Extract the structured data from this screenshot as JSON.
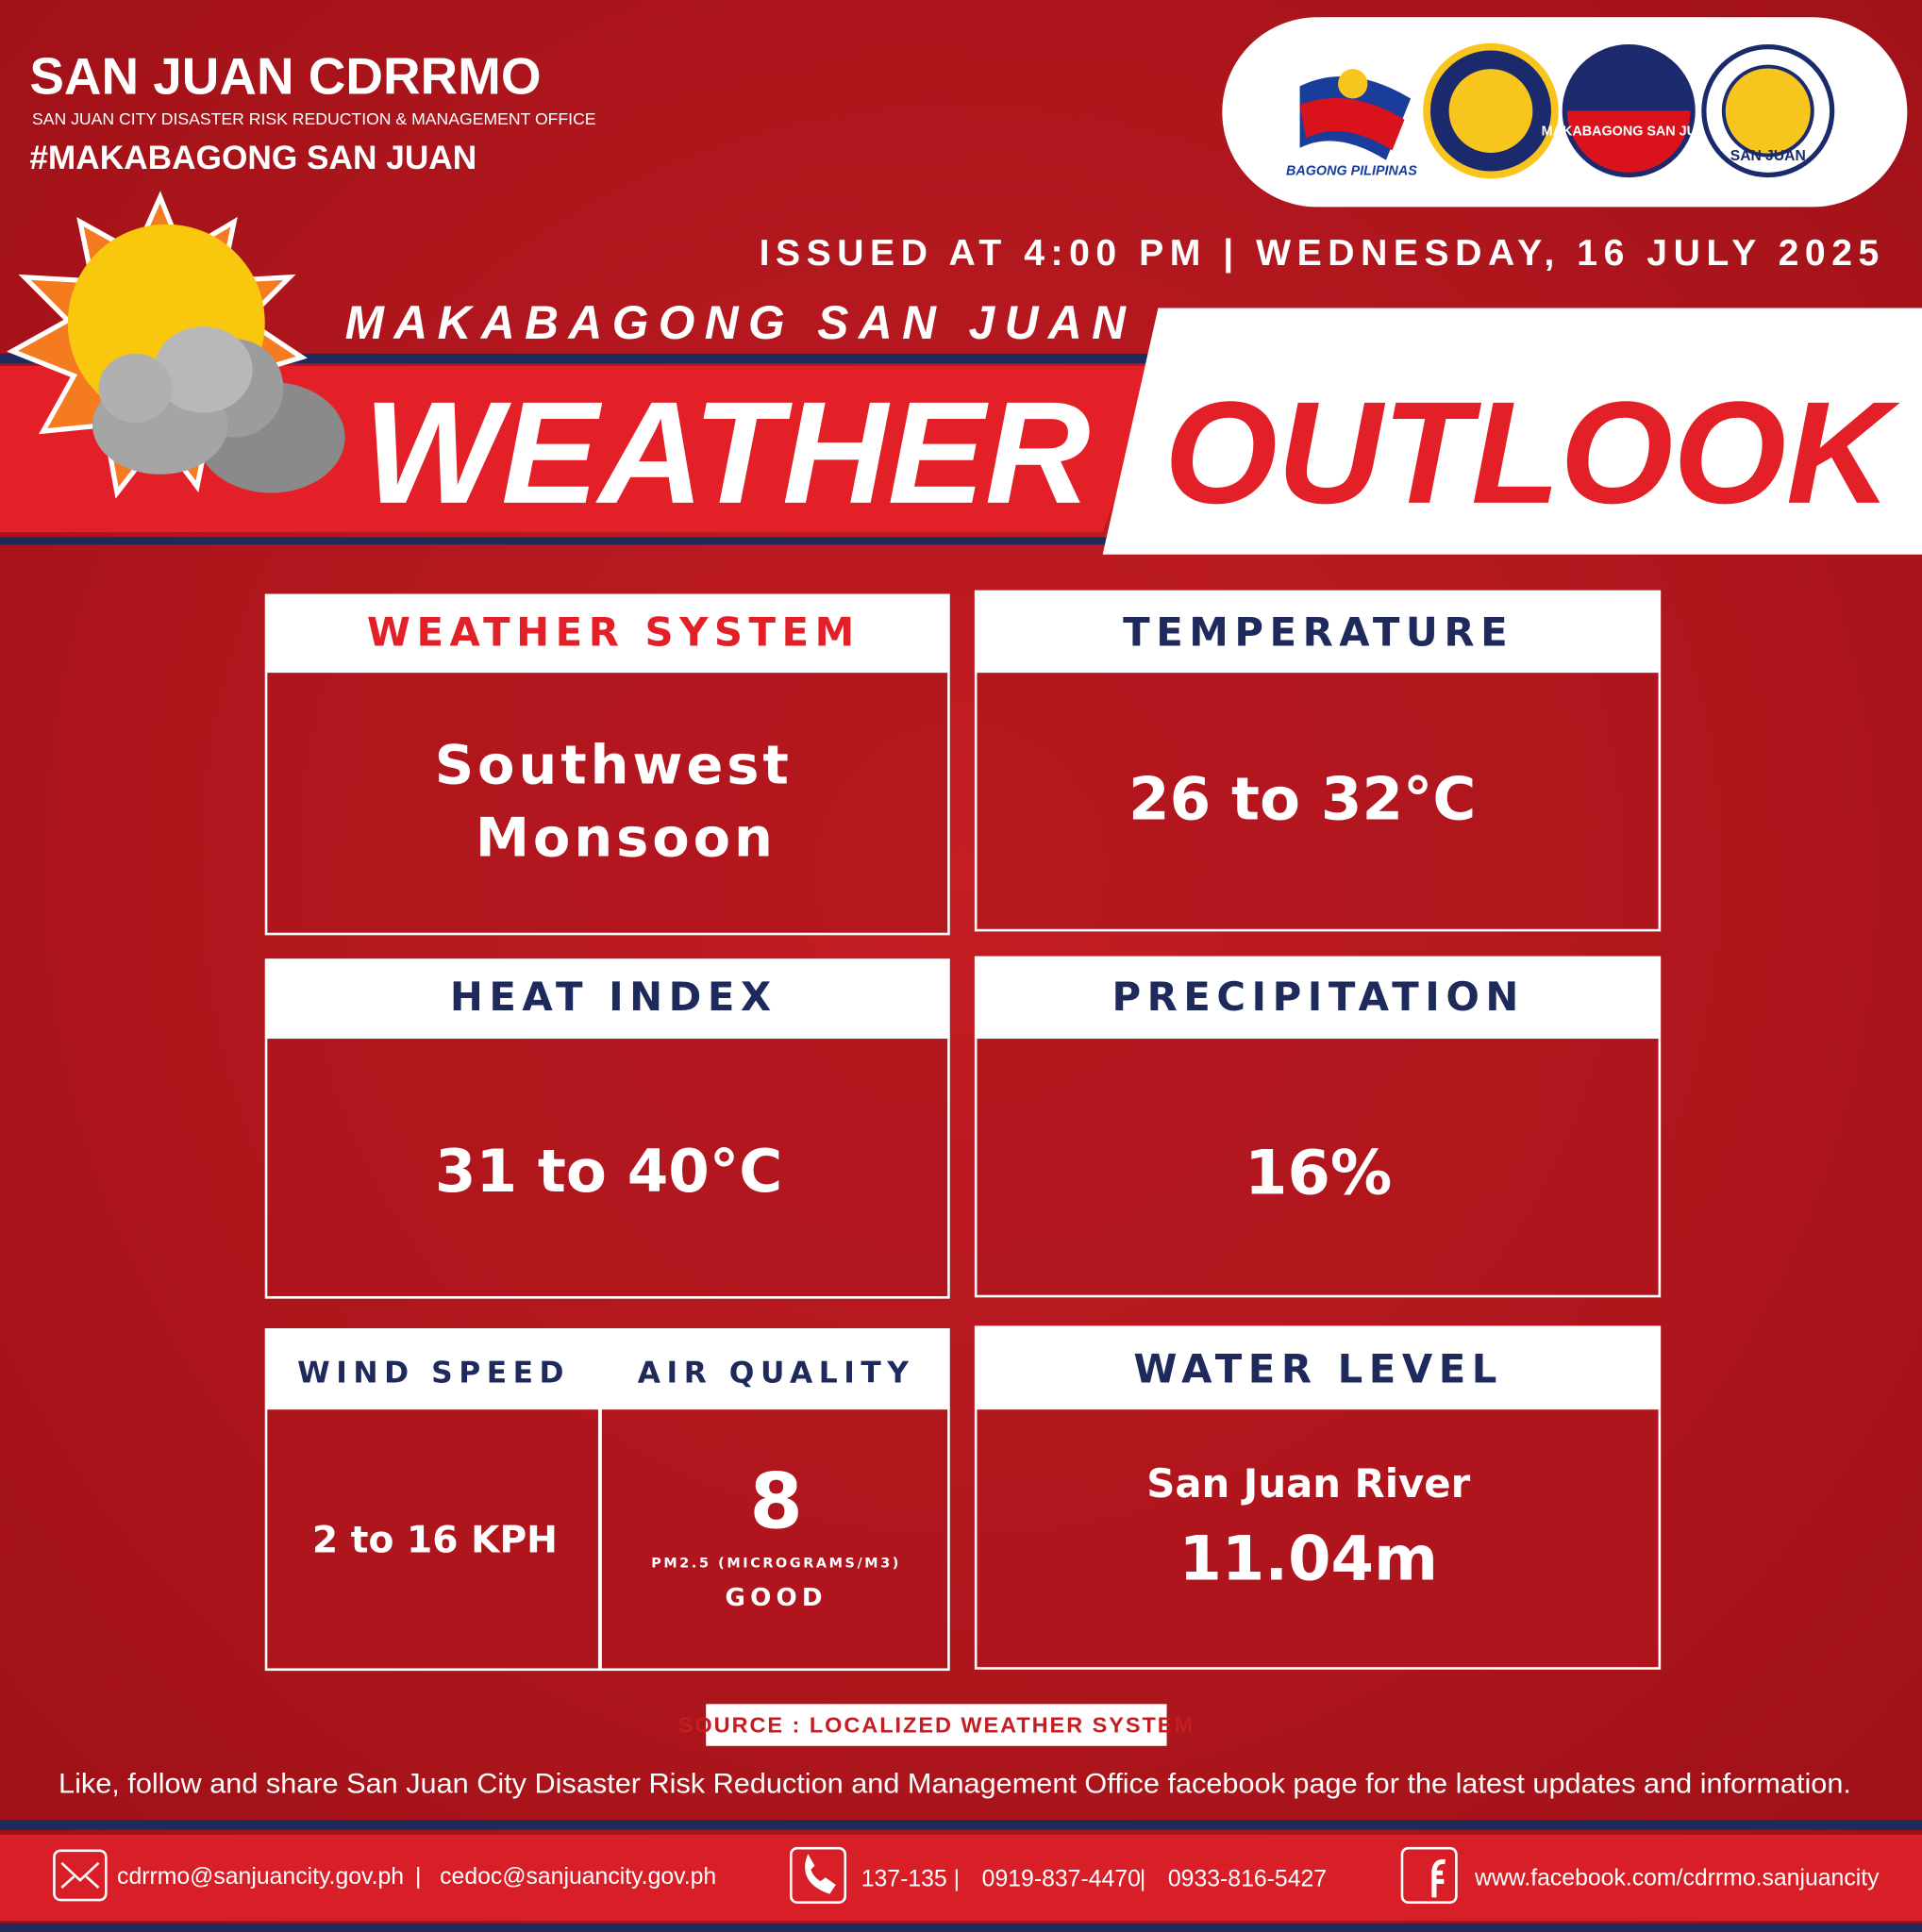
{
  "header": {
    "title": "SAN JUAN CDRRMO",
    "subtitle": "SAN JUAN CITY DISASTER RISK REDUCTION & MANAGEMENT OFFICE",
    "hashtag": "#MAKABAGONG SAN JUAN"
  },
  "logos": [
    "BAGONG PILIPINAS",
    "MAKABAGONG SAN JUAN",
    "SAN JUAN"
  ],
  "issued": "ISSUED AT 4:00 PM | WEDNESDAY, 16 JULY 2025",
  "banner": {
    "kicker": "MAKABAGONG SAN JUAN",
    "word1": "WEATHER",
    "word2": "OUTLOOK"
  },
  "cards": {
    "weather_system": {
      "title": "WEATHER SYSTEM",
      "lines": [
        "Southwest",
        "Monsoon"
      ]
    },
    "temperature": {
      "title": "TEMPERATURE",
      "value": "26 to 32°C"
    },
    "heat_index": {
      "title": "HEAT INDEX",
      "value": "31 to 40°C"
    },
    "precipitation": {
      "title": "PRECIPITATION",
      "value": "16%"
    },
    "wind_speed": {
      "title": "WIND SPEED",
      "value": "2 to 16 KPH"
    },
    "air_quality": {
      "title": "AIR QUALITY",
      "value": "8",
      "unit": "PM2.5 (MICROGRAMS/M3)",
      "rating": "GOOD"
    },
    "water_level": {
      "title": "WATER LEVEL",
      "location": "San Juan River",
      "value": "11.04m"
    }
  },
  "source": "SOURCE : LOCALIZED WEATHER SYSTEM",
  "note": "Like, follow and share San Juan City Disaster Risk Reduction and Management Office facebook page for the latest updates and information.",
  "footer": {
    "emails": [
      "cdrrmo@sanjuancity.gov.ph",
      "cedoc@sanjuancity.gov.ph"
    ],
    "phones": [
      "137-135",
      "0919-837-4470",
      "0933-816-5427"
    ],
    "facebook": "www.facebook.com/cdrrmo.sanjuancity"
  }
}
